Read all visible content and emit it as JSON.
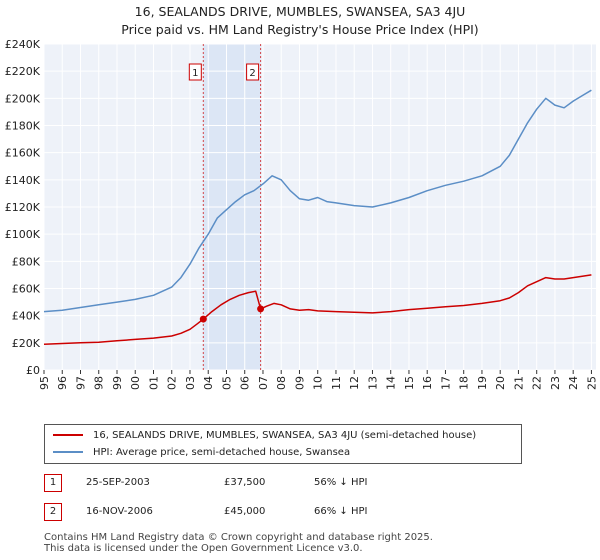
{
  "chart_data": {
    "type": "line",
    "title": "16, SEALANDS DRIVE, MUMBLES, SWANSEA, SA3 4JU",
    "subtitle": "Price paid vs. HM Land Registry's House Price Index (HPI)",
    "xlabel": "",
    "ylabel": "",
    "xlim": [
      1995,
      2025.25
    ],
    "ylim": [
      0,
      240000
    ],
    "grid": true,
    "y_ticks": [
      0,
      20000,
      40000,
      60000,
      80000,
      100000,
      120000,
      140000,
      160000,
      180000,
      200000,
      220000,
      240000
    ],
    "y_tick_labels": [
      "£0",
      "£20K",
      "£40K",
      "£60K",
      "£80K",
      "£100K",
      "£120K",
      "£140K",
      "£160K",
      "£180K",
      "£200K",
      "£220K",
      "£240K"
    ],
    "x_ticks": [
      1995,
      1996,
      1997,
      1998,
      1999,
      2000,
      2001,
      2002,
      2003,
      2004,
      2005,
      2006,
      2007,
      2008,
      2009,
      2010,
      2011,
      2012,
      2013,
      2014,
      2015,
      2016,
      2017,
      2018,
      2019,
      2020,
      2021,
      2022,
      2023,
      2024,
      2025
    ],
    "x_tick_labels": [
      "1995",
      "1996",
      "1997",
      "1998",
      "1999",
      "2000",
      "2001",
      "2002",
      "2003",
      "2004",
      "2005",
      "2006",
      "2007",
      "2008",
      "2009",
      "2010",
      "2011",
      "2012",
      "2013",
      "2014",
      "2015",
      "2016",
      "2017",
      "2018",
      "2019",
      "2020",
      "2021",
      "2022",
      "2023",
      "2024",
      "2025"
    ],
    "series": [
      {
        "name": "16, SEALANDS DRIVE, MUMBLES, SWANSEA, SA3 4JU (semi-detached house)",
        "color": "#cc0000",
        "x": [
          1995.0,
          1996.0,
          1997.0,
          1998.0,
          1999.0,
          2000.0,
          2001.0,
          2002.0,
          2002.5,
          2003.0,
          2003.4,
          2003.73,
          2004.2,
          2004.7,
          2005.2,
          2005.7,
          2006.2,
          2006.6,
          2006.87,
          2007.2,
          2007.6,
          2008.0,
          2008.5,
          2009.0,
          2009.5,
          2010.0,
          2011.0,
          2012.0,
          2013.0,
          2014.0,
          2015.0,
          2016.0,
          2017.0,
          2018.0,
          2019.0,
          2020.0,
          2020.5,
          2021.0,
          2021.5,
          2022.0,
          2022.5,
          2023.0,
          2023.5,
          2024.0,
          2024.5,
          2025.0
        ],
        "y": [
          19000,
          19500,
          20000,
          20500,
          21500,
          22500,
          23500,
          25000,
          27000,
          30000,
          34000,
          37500,
          43000,
          48000,
          52000,
          55000,
          57000,
          58000,
          45000,
          47000,
          49000,
          48000,
          45000,
          44000,
          44500,
          43500,
          43000,
          42500,
          42000,
          43000,
          44500,
          45500,
          46500,
          47500,
          49000,
          51000,
          53000,
          57000,
          62000,
          65000,
          68000,
          67000,
          67000,
          68000,
          69000,
          70000
        ],
        "values": [
          19000,
          19500,
          20000,
          20500,
          21500,
          22500,
          23500,
          25000,
          27000,
          30000,
          34000,
          37500,
          43000,
          48000,
          52000,
          55000,
          57000,
          58000,
          45000,
          47000,
          49000,
          48000,
          45000,
          44000,
          44500,
          43500,
          43000,
          42500,
          42000,
          43000,
          44500,
          45500,
          46500,
          47500,
          49000,
          51000,
          53000,
          57000,
          62000,
          65000,
          68000,
          67000,
          67000,
          68000,
          69000,
          70000
        ]
      },
      {
        "name": "HPI: Average price, semi-detached house, Swansea",
        "color": "#5b8ec6",
        "x": [
          1995.0,
          1996.0,
          1997.0,
          1998.0,
          1999.0,
          2000.0,
          2001.0,
          2002.0,
          2002.5,
          2003.0,
          2003.5,
          2004.0,
          2004.5,
          2005.0,
          2005.5,
          2006.0,
          2006.5,
          2007.0,
          2007.5,
          2008.0,
          2008.5,
          2009.0,
          2009.5,
          2010.0,
          2010.5,
          2011.0,
          2012.0,
          2013.0,
          2014.0,
          2015.0,
          2016.0,
          2017.0,
          2018.0,
          2019.0,
          2020.0,
          2020.5,
          2021.0,
          2021.5,
          2022.0,
          2022.5,
          2023.0,
          2023.5,
          2024.0,
          2024.5,
          2025.0
        ],
        "y": [
          43000,
          44000,
          46000,
          48000,
          50000,
          52000,
          55000,
          61000,
          68000,
          78000,
          90000,
          100000,
          112000,
          118000,
          124000,
          129000,
          132000,
          137000,
          143000,
          140000,
          132000,
          126000,
          125000,
          127000,
          124000,
          123000,
          121000,
          120000,
          123000,
          127000,
          132000,
          136000,
          139000,
          143000,
          150000,
          158000,
          170000,
          182000,
          192000,
          200000,
          195000,
          193000,
          198000,
          202000,
          206000
        ],
        "values": [
          43000,
          44000,
          46000,
          48000,
          50000,
          52000,
          55000,
          61000,
          68000,
          78000,
          90000,
          100000,
          112000,
          118000,
          124000,
          129000,
          132000,
          137000,
          143000,
          140000,
          132000,
          126000,
          125000,
          127000,
          124000,
          123000,
          121000,
          120000,
          123000,
          127000,
          132000,
          136000,
          139000,
          143000,
          150000,
          158000,
          170000,
          182000,
          192000,
          200000,
          195000,
          193000,
          198000,
          202000,
          206000
        ]
      }
    ],
    "annotations": [
      {
        "label": "1",
        "x": 2003.73,
        "y": 37500
      },
      {
        "label": "2",
        "x": 2006.87,
        "y": 45000
      }
    ],
    "shaded_range": [
      2003.73,
      2006.87
    ],
    "legend_position": "bottom"
  },
  "colors": {
    "property_line": "#cc0000",
    "hpi_line": "#5b8ec6",
    "plot_background": "#eef2f9",
    "shade": "#dce6f5",
    "grid": "#ffffff",
    "marker_border": "#cc0000"
  },
  "legend": {
    "property": "16, SEALANDS DRIVE, MUMBLES, SWANSEA, SA3 4JU (semi-detached house)",
    "hpi": "HPI: Average price, semi-detached house, Swansea"
  },
  "transactions": [
    {
      "marker": "1",
      "date": "25-SEP-2003",
      "price": "£37,500",
      "hpi_diff": "56% ↓ HPI"
    },
    {
      "marker": "2",
      "date": "16-NOV-2006",
      "price": "£45,000",
      "hpi_diff": "66% ↓ HPI"
    }
  ],
  "footer": {
    "line1": "Contains HM Land Registry data © Crown copyright and database right 2025.",
    "line2": "This data is licensed under the Open Government Licence v3.0."
  }
}
